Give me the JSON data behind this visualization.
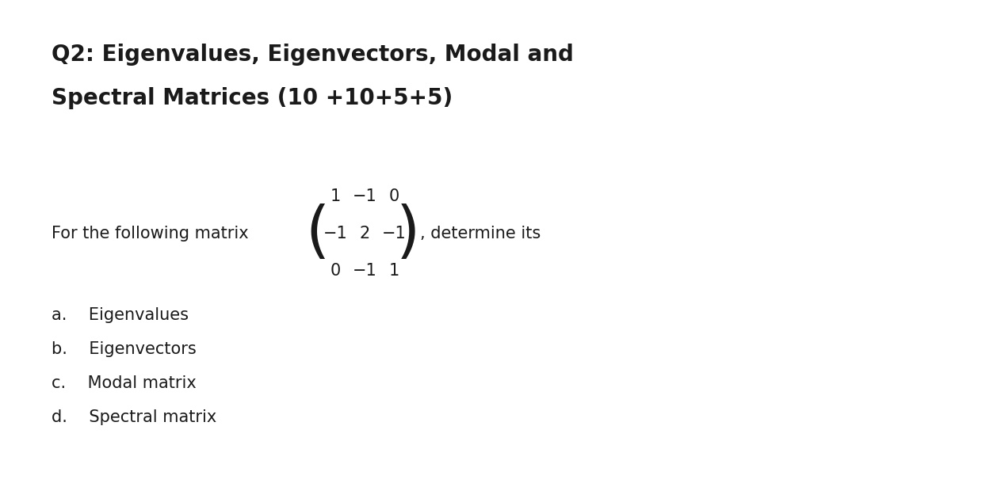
{
  "title_line1": "Q2: Eigenvalues, Eigenvectors, Modal and",
  "title_line2": "Spectral Matrices (10 +10+5+5)",
  "intro_text": "For the following matrix",
  "after_matrix": ", determine its",
  "matrix_rows": [
    [
      "1",
      "−1",
      "0"
    ],
    [
      "−1",
      "2",
      "−1"
    ],
    [
      "0",
      "−1",
      "1"
    ]
  ],
  "items": [
    "a.  Eigenvalues",
    "b.  Eigenvectors",
    "c.  Modal matrix",
    "d.  Spectral matrix"
  ],
  "background_color": "#ffffff",
  "text_color": "#1a1a1a",
  "title_fontsize": 20,
  "body_fontsize": 15,
  "matrix_fontsize": 15,
  "paren_fontsize": 56
}
